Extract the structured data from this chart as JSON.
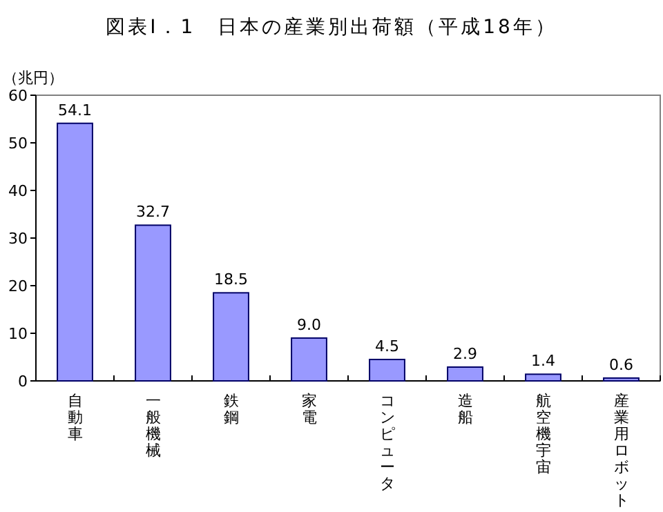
{
  "chart_data": {
    "type": "bar",
    "title": "図表Ⅰ．1　日本の産業別出荷額（平成18年）",
    "ylabel": "（兆円）",
    "categories": [
      "自動車",
      "一般機械",
      "鉄鋼",
      "家電",
      "コンピュータ",
      "造船",
      "航空機宇宙",
      "産業用ロボット"
    ],
    "values": [
      54.1,
      32.7,
      18.5,
      9.0,
      4.5,
      2.9,
      1.4,
      0.6
    ],
    "value_labels": [
      "54.1",
      "32.7",
      "18.5",
      "9.0",
      "4.5",
      "2.9",
      "1.4",
      "0.6"
    ],
    "color": "#9999ff",
    "ylim": [
      0,
      60
    ],
    "yticks": [
      0,
      10,
      20,
      30,
      40,
      50,
      60
    ],
    "grid": false
  }
}
